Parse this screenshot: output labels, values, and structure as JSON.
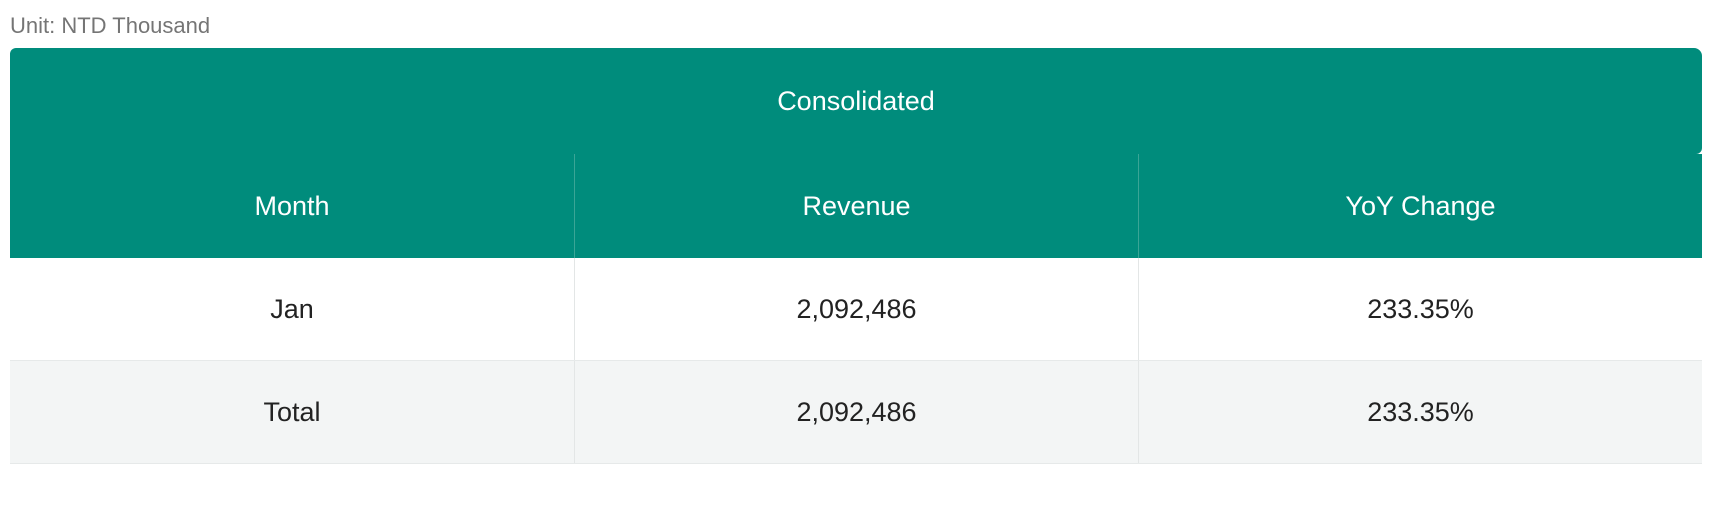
{
  "unit_label": "Unit: NTD Thousand",
  "table": {
    "group_header": "Consolidated",
    "columns": [
      "Month",
      "Revenue",
      "YoY Change"
    ],
    "rows": [
      [
        "Jan",
        "2,092,486",
        "233.35%"
      ],
      [
        "Total",
        "2,092,486",
        "233.35%"
      ]
    ]
  },
  "colors": {
    "header_bg": "#008c7c",
    "header_text": "#ffffff",
    "alt_row_bg": "#f3f5f5",
    "unit_text": "#757575"
  }
}
